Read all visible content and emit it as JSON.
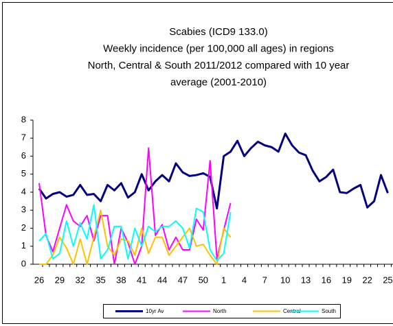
{
  "chart_data": {
    "type": "line",
    "title": [
      "Scabies (ICD9 133.0)",
      "Weekly incidence (per 100,000 all ages) in regions",
      "North, Central & South 2011/2012 compared with 10 year",
      "average (2001-2010)"
    ],
    "categories": [
      "26",
      null,
      null,
      "29",
      null,
      null,
      "32",
      null,
      null,
      "35",
      null,
      null,
      "38",
      null,
      null,
      "41",
      null,
      null,
      "44",
      null,
      null,
      "47",
      null,
      null,
      "50",
      null,
      null,
      "1",
      null,
      null,
      "4",
      null,
      null,
      "7",
      null,
      null,
      "10",
      null,
      null,
      "13",
      null,
      null,
      "16",
      null,
      null,
      "19",
      null,
      null,
      "22",
      null,
      null,
      "25"
    ],
    "series": [
      {
        "name": "10yr Av",
        "color": "#000080",
        "values": [
          4.2,
          3.65,
          3.9,
          4.0,
          3.75,
          3.85,
          4.4,
          3.85,
          3.9,
          3.5,
          4.4,
          4.1,
          4.5,
          3.7,
          4.0,
          5.0,
          4.1,
          4.6,
          4.95,
          4.6,
          5.6,
          5.1,
          4.9,
          4.95,
          5.05,
          4.85,
          3.1,
          6.0,
          6.25,
          6.85,
          6.0,
          6.45,
          6.8,
          6.6,
          6.5,
          6.25,
          7.25,
          6.6,
          6.2,
          6.05,
          5.2,
          4.6,
          4.85,
          5.25,
          4.0,
          3.95,
          4.2,
          4.4,
          3.15,
          3.5,
          4.95,
          3.95
        ]
      },
      {
        "name": "North",
        "color": "#ff00ff",
        "values": [
          4.5,
          1.6,
          0.7,
          2.0,
          3.3,
          2.4,
          2.1,
          2.7,
          1.3,
          2.7,
          2.7,
          0.0,
          2.0,
          1.2,
          0.0,
          1.0,
          6.45,
          1.6,
          2.2,
          0.8,
          1.5,
          0.8,
          0.8,
          2.5,
          1.9,
          5.75,
          0.3,
          1.9,
          3.4,
          null,
          null,
          null,
          null,
          null,
          null,
          null,
          null,
          null,
          null,
          null,
          null,
          null,
          null,
          null,
          null,
          null,
          null,
          null,
          null,
          null,
          null,
          null
        ]
      },
      {
        "name": "Central",
        "color": "#ffc000",
        "values": [
          0.0,
          0.0,
          0.5,
          1.5,
          0.9,
          0.0,
          1.4,
          0.0,
          1.5,
          3.0,
          1.0,
          0.5,
          1.4,
          1.3,
          0.5,
          2.0,
          0.6,
          1.5,
          1.5,
          0.5,
          1.0,
          1.5,
          2.0,
          1.0,
          1.1,
          0.5,
          0.0,
          2.0,
          1.5,
          null,
          null,
          null,
          null,
          null,
          null,
          null,
          null,
          null,
          null,
          null,
          null,
          null,
          null,
          null,
          null,
          null,
          null,
          null,
          null,
          null,
          null,
          null
        ]
      },
      {
        "name": "South",
        "color": "#00ffff",
        "values": [
          1.3,
          1.7,
          0.3,
          0.6,
          2.4,
          1.0,
          2.3,
          1.4,
          3.3,
          0.3,
          0.8,
          2.1,
          2.1,
          0.3,
          2.0,
          1.0,
          2.1,
          1.8,
          2.1,
          2.1,
          2.4,
          2.0,
          0.9,
          3.1,
          2.9,
          0.8,
          0.2,
          0.6,
          2.9,
          null,
          null,
          null,
          null,
          null,
          null,
          null,
          null,
          null,
          null,
          null,
          null,
          null,
          null,
          null,
          null,
          null,
          null,
          null,
          null,
          null,
          null,
          null
        ]
      }
    ],
    "ylim": [
      0,
      8
    ],
    "yticks": [
      0,
      1,
      2,
      3,
      4,
      5,
      6,
      7,
      8
    ],
    "grid": false,
    "legend": "bottom"
  }
}
